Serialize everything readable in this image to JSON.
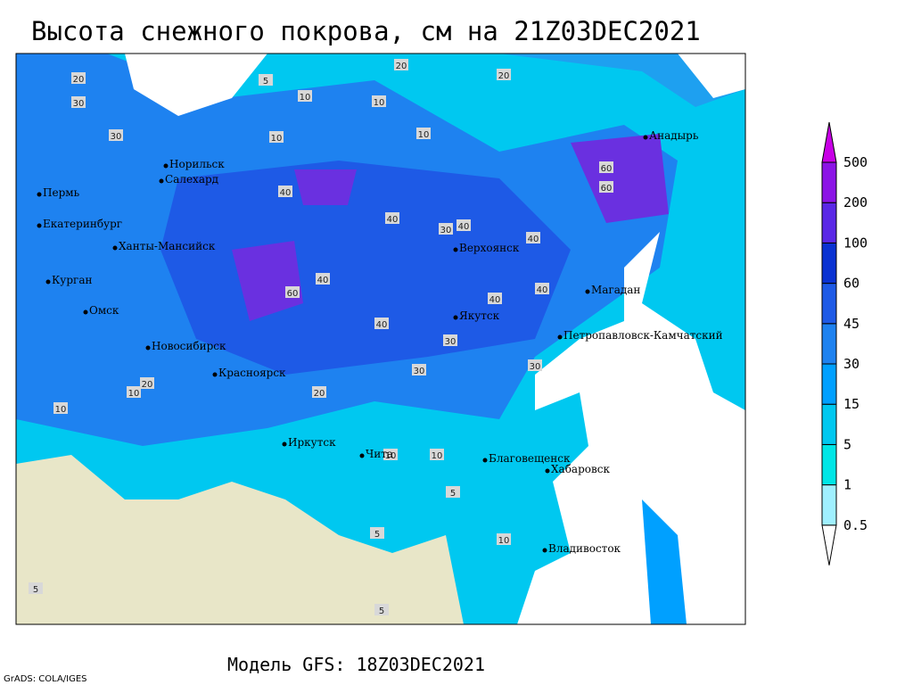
{
  "header": {
    "title": "Высота снежного покрова, см на 21Z03DEC2021"
  },
  "footer": {
    "model": "Модель GFS: 18Z03DEC2021",
    "credit": "GrADS: COLA/IGES"
  },
  "legend": {
    "levels": [
      0.5,
      1,
      5,
      15,
      30,
      45,
      60,
      100,
      200,
      500
    ],
    "colors": [
      "#ffffff",
      "#a0f0ff",
      "#00e6e6",
      "#00c8f0",
      "#00a0ff",
      "#1e82f0",
      "#1e5ae6",
      "#0a32d2",
      "#5a28e6",
      "#8c14e6",
      "#c800e6"
    ]
  },
  "cities": [
    "Норильск",
    "Салехард",
    "Пермь",
    "Екатеринбург",
    "Ханты-Мансийск",
    "Курган",
    "Омск",
    "Новосибирск",
    "Красноярск",
    "Иркутск",
    "Чита",
    "Верхоянск",
    "Якутск",
    "Магадан",
    "Анадырь",
    "Петропавловск-Камчатский",
    "Благовещенск",
    "Хабаровск",
    "Владивосток"
  ],
  "contour_labels": [
    "20",
    "5",
    "10",
    "20",
    "10",
    "20",
    "30",
    "30",
    "10",
    "10",
    "40",
    "60",
    "60",
    "40",
    "40",
    "40",
    "40",
    "30",
    "40",
    "60",
    "40",
    "30",
    "40",
    "30",
    "20",
    "20",
    "10",
    "10",
    "5",
    "5",
    "10",
    "10",
    "10",
    "5",
    "5",
    "30"
  ]
}
